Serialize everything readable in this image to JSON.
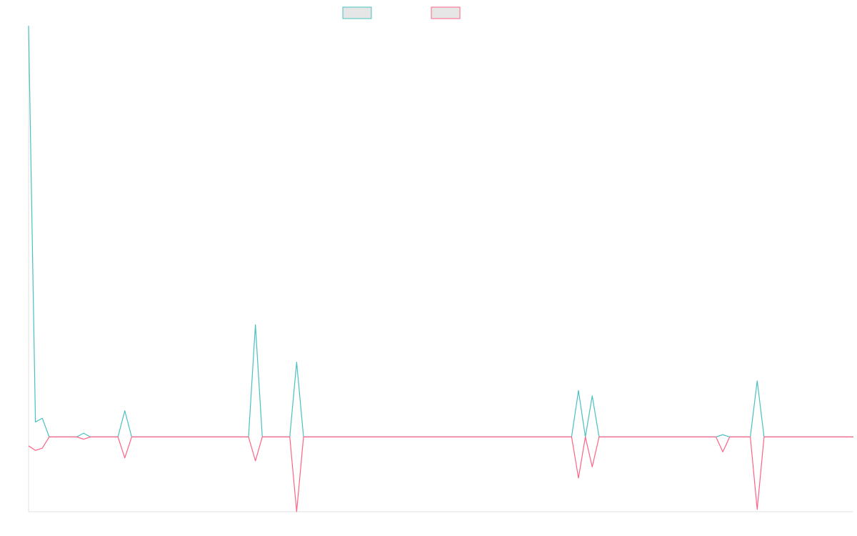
{
  "chart_data": {
    "type": "line",
    "title": "",
    "xlabel": "",
    "ylabel": "",
    "grid": false,
    "legend": "top-center",
    "x": [
      0,
      1,
      2,
      3,
      4,
      5,
      6,
      7,
      8,
      9,
      10,
      11,
      12,
      13,
      14,
      15,
      16,
      17,
      18,
      19,
      20,
      21,
      22,
      23,
      24,
      25,
      26,
      27,
      28,
      29,
      30,
      31,
      32,
      33,
      34,
      35,
      36,
      37,
      38,
      39,
      40,
      41,
      42,
      43,
      44,
      45,
      46,
      47,
      48,
      49,
      50,
      51,
      52,
      53,
      54,
      55,
      56,
      57,
      58,
      59,
      60,
      61,
      62,
      63,
      64,
      65,
      66,
      67,
      68,
      69,
      70,
      71,
      72,
      73,
      74,
      75,
      76,
      77,
      78,
      79,
      80,
      81,
      82,
      83,
      84,
      85,
      86,
      87,
      88,
      89,
      90,
      91,
      92,
      93,
      94,
      95,
      96,
      97,
      98,
      99,
      100,
      101,
      102,
      103,
      104,
      105,
      106,
      107,
      108,
      109,
      110,
      111,
      112,
      113,
      114,
      115,
      116,
      117,
      118,
      119,
      120
    ],
    "ylim": [
      -100,
      550
    ],
    "series": [
      {
        "name": "",
        "color": "#4bc0c0",
        "fill": "#e6e6e6",
        "values": [
          550,
          20,
          25,
          0,
          0,
          0,
          0,
          0,
          5,
          0,
          0,
          0,
          0,
          0,
          35,
          0,
          0,
          0,
          0,
          0,
          0,
          0,
          0,
          0,
          0,
          0,
          0,
          0,
          0,
          0,
          0,
          0,
          0,
          150,
          0,
          0,
          0,
          0,
          0,
          100,
          0,
          0,
          0,
          0,
          0,
          0,
          0,
          0,
          0,
          0,
          0,
          0,
          0,
          0,
          0,
          0,
          0,
          0,
          0,
          0,
          0,
          0,
          0,
          0,
          0,
          0,
          0,
          0,
          0,
          0,
          0,
          0,
          0,
          0,
          0,
          0,
          0,
          0,
          0,
          0,
          62,
          0,
          55,
          0,
          0,
          0,
          0,
          0,
          0,
          0,
          0,
          0,
          0,
          0,
          0,
          0,
          0,
          0,
          0,
          0,
          0,
          3,
          0,
          0,
          0,
          0,
          75,
          0,
          0,
          0,
          0,
          0,
          0,
          0,
          0,
          0,
          0,
          0,
          0,
          0,
          0
        ]
      },
      {
        "name": "",
        "color": "#ff6384",
        "fill": "#e6e6e6",
        "values": [
          -12,
          -18,
          -15,
          0,
          0,
          0,
          0,
          0,
          -3,
          0,
          0,
          0,
          0,
          0,
          -28,
          0,
          0,
          0,
          0,
          0,
          0,
          0,
          0,
          0,
          0,
          0,
          0,
          0,
          0,
          0,
          0,
          0,
          0,
          -32,
          0,
          0,
          0,
          0,
          0,
          -100,
          0,
          0,
          0,
          0,
          0,
          0,
          0,
          0,
          0,
          0,
          0,
          0,
          0,
          0,
          0,
          0,
          0,
          0,
          0,
          0,
          0,
          0,
          0,
          0,
          0,
          0,
          0,
          0,
          0,
          0,
          0,
          0,
          0,
          0,
          0,
          0,
          0,
          0,
          0,
          0,
          -55,
          0,
          -40,
          0,
          0,
          0,
          0,
          0,
          0,
          0,
          0,
          0,
          0,
          0,
          0,
          0,
          0,
          0,
          0,
          0,
          0,
          -20,
          0,
          0,
          0,
          0,
          -97,
          0,
          0,
          0,
          0,
          0,
          0,
          0,
          0,
          0,
          0,
          0,
          0,
          0,
          0
        ]
      }
    ]
  }
}
